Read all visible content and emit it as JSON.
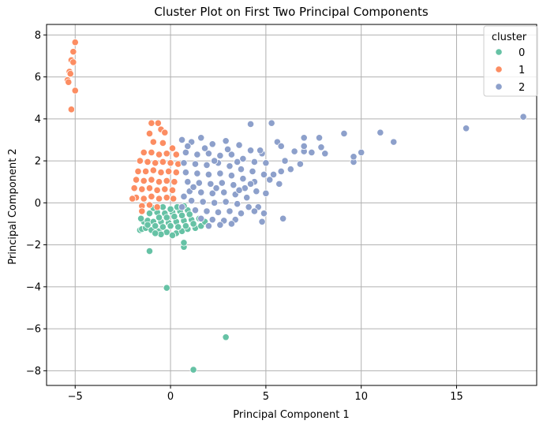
{
  "chart_data": {
    "type": "scatter",
    "title": "Cluster Plot on First Two Principal Components",
    "xlabel": "Principal Component 1",
    "ylabel": "Principal Component 2",
    "xlim": [
      -6.5,
      19.2
    ],
    "ylim": [
      -8.7,
      8.5
    ],
    "xticks": [
      -5,
      0,
      5,
      10,
      15
    ],
    "yticks": [
      -8,
      -6,
      -4,
      -2,
      0,
      2,
      4,
      6,
      8
    ],
    "xtick_labels": [
      "−5",
      "0",
      "5",
      "10",
      "15"
    ],
    "ytick_labels": [
      "−8",
      "−6",
      "−4",
      "−2",
      "0",
      "2",
      "4",
      "6",
      "8"
    ],
    "grid": true,
    "legend": {
      "title": "cluster",
      "placement": "top-right",
      "entries": [
        "0",
        "1",
        "2"
      ]
    },
    "series": [
      {
        "name": "0",
        "color": "#66c2a5",
        "points": [
          [
            -1.1,
            -2.3
          ],
          [
            -0.2,
            -4.05
          ],
          [
            0.7,
            -2.1
          ],
          [
            0.7,
            -1.9
          ],
          [
            2.9,
            -6.4
          ],
          [
            1.2,
            -7.95
          ],
          [
            -1.6,
            -1.3
          ],
          [
            -1.5,
            -1.25
          ],
          [
            -1.3,
            -1.2
          ],
          [
            -1.0,
            -1.3
          ],
          [
            -0.6,
            -1.35
          ],
          [
            -0.2,
            -1.4
          ],
          [
            0.3,
            -1.45
          ],
          [
            0.6,
            -1.35
          ],
          [
            0.9,
            -1.25
          ],
          [
            1.3,
            -1.2
          ],
          [
            -1.4,
            -0.9
          ],
          [
            -1.2,
            -0.85
          ],
          [
            -0.9,
            -0.9
          ],
          [
            -0.5,
            -0.9
          ],
          [
            -0.1,
            -0.95
          ],
          [
            0.3,
            -0.9
          ],
          [
            0.7,
            -0.85
          ],
          [
            1.1,
            -0.8
          ],
          [
            1.5,
            -0.75
          ],
          [
            -1.1,
            -0.5
          ],
          [
            -0.7,
            -0.45
          ],
          [
            -0.3,
            -0.5
          ],
          [
            0.1,
            -0.45
          ],
          [
            0.5,
            -0.4
          ],
          [
            0.9,
            -0.35
          ],
          [
            -1.2,
            -1.05
          ],
          [
            -0.8,
            -1.1
          ],
          [
            -0.4,
            -1.15
          ],
          [
            0.0,
            -1.1
          ],
          [
            0.4,
            -1.15
          ],
          [
            0.8,
            -1.1
          ],
          [
            1.2,
            -1.0
          ],
          [
            -0.6,
            -0.7
          ],
          [
            -0.2,
            -0.7
          ],
          [
            0.2,
            -0.65
          ],
          [
            0.6,
            -0.6
          ],
          [
            1.0,
            -0.55
          ],
          [
            -0.9,
            -0.25
          ],
          [
            -0.4,
            -0.2
          ],
          [
            0.0,
            -0.3
          ],
          [
            0.35,
            -0.2
          ],
          [
            0.7,
            -0.15
          ],
          [
            1.6,
            -1.1
          ],
          [
            -0.5,
            -1.5
          ],
          [
            0.1,
            -1.55
          ],
          [
            -1.55,
            -0.75
          ],
          [
            1.8,
            -0.9
          ],
          [
            -0.8,
            -1.45
          ]
        ]
      },
      {
        "name": "1",
        "color": "#fc8d62",
        "points": [
          [
            -5.0,
            7.65
          ],
          [
            -5.1,
            7.2
          ],
          [
            -5.2,
            6.8
          ],
          [
            -5.1,
            6.7
          ],
          [
            -5.3,
            6.25
          ],
          [
            -5.25,
            6.15
          ],
          [
            -5.4,
            5.85
          ],
          [
            -5.35,
            5.75
          ],
          [
            -5.0,
            5.35
          ],
          [
            -5.2,
            4.45
          ],
          [
            -1.0,
            3.8
          ],
          [
            -0.65,
            3.8
          ],
          [
            -1.1,
            3.3
          ],
          [
            -0.5,
            3.5
          ],
          [
            -0.3,
            3.35
          ],
          [
            -0.9,
            2.9
          ],
          [
            -0.4,
            2.85
          ],
          [
            0.1,
            2.6
          ],
          [
            -1.4,
            2.4
          ],
          [
            -1.0,
            2.4
          ],
          [
            -0.6,
            2.3
          ],
          [
            -0.2,
            2.35
          ],
          [
            0.3,
            2.3
          ],
          [
            -1.6,
            2.0
          ],
          [
            -1.2,
            1.95
          ],
          [
            -0.8,
            1.9
          ],
          [
            -0.4,
            1.95
          ],
          [
            0.0,
            1.9
          ],
          [
            0.4,
            1.85
          ],
          [
            -1.7,
            1.5
          ],
          [
            -1.3,
            1.5
          ],
          [
            -0.9,
            1.55
          ],
          [
            -0.5,
            1.45
          ],
          [
            -0.1,
            1.5
          ],
          [
            0.3,
            1.45
          ],
          [
            -1.8,
            1.1
          ],
          [
            -1.4,
            1.05
          ],
          [
            -1.0,
            1.1
          ],
          [
            -0.6,
            1.0
          ],
          [
            -0.2,
            1.05
          ],
          [
            0.2,
            1.0
          ],
          [
            -1.9,
            0.7
          ],
          [
            -1.5,
            0.65
          ],
          [
            -1.1,
            0.7
          ],
          [
            -0.7,
            0.6
          ],
          [
            -0.3,
            0.65
          ],
          [
            0.1,
            0.6
          ],
          [
            -1.8,
            0.25
          ],
          [
            -1.4,
            0.2
          ],
          [
            -1.0,
            0.3
          ],
          [
            -0.6,
            0.2
          ],
          [
            -0.2,
            0.25
          ],
          [
            0.15,
            0.2
          ],
          [
            -1.5,
            -0.15
          ],
          [
            -1.1,
            -0.1
          ],
          [
            -0.7,
            -0.2
          ],
          [
            -1.5,
            -0.4
          ],
          [
            -2.0,
            0.2
          ]
        ]
      },
      {
        "name": "2",
        "color": "#8da0cb",
        "points": [
          [
            18.5,
            4.1
          ],
          [
            15.5,
            3.55
          ],
          [
            11.7,
            2.9
          ],
          [
            11.0,
            3.35
          ],
          [
            10.0,
            2.4
          ],
          [
            9.6,
            1.95
          ],
          [
            9.6,
            2.2
          ],
          [
            9.1,
            3.3
          ],
          [
            8.1,
            2.35
          ],
          [
            7.9,
            2.65
          ],
          [
            7.8,
            3.1
          ],
          [
            7.4,
            2.4
          ],
          [
            7.0,
            2.45
          ],
          [
            7.0,
            2.7
          ],
          [
            7.0,
            3.1
          ],
          [
            5.3,
            3.8
          ],
          [
            4.2,
            3.75
          ],
          [
            5.6,
            2.9
          ],
          [
            5.8,
            2.7
          ],
          [
            6.5,
            2.45
          ],
          [
            6.8,
            1.85
          ],
          [
            6.3,
            1.6
          ],
          [
            5.9,
            -0.75
          ],
          [
            4.9,
            -0.5
          ],
          [
            4.8,
            -0.9
          ],
          [
            4.6,
            -0.2
          ],
          [
            5.7,
            0.9
          ],
          [
            5.8,
            1.5
          ],
          [
            6.0,
            2.0
          ],
          [
            0.6,
            3.0
          ],
          [
            1.1,
            2.9
          ],
          [
            1.6,
            3.1
          ],
          [
            2.2,
            2.8
          ],
          [
            2.9,
            2.95
          ],
          [
            3.6,
            2.75
          ],
          [
            4.2,
            2.5
          ],
          [
            4.8,
            2.35
          ],
          [
            0.8,
            2.4
          ],
          [
            1.4,
            2.3
          ],
          [
            2.0,
            2.35
          ],
          [
            2.6,
            2.25
          ],
          [
            3.2,
            2.3
          ],
          [
            3.8,
            2.1
          ],
          [
            4.4,
            1.95
          ],
          [
            5.0,
            1.9
          ],
          [
            0.7,
            1.9
          ],
          [
            1.3,
            1.85
          ],
          [
            1.9,
            1.8
          ],
          [
            2.5,
            1.9
          ],
          [
            3.1,
            1.75
          ],
          [
            3.7,
            1.6
          ],
          [
            4.3,
            1.5
          ],
          [
            4.9,
            1.35
          ],
          [
            0.8,
            1.45
          ],
          [
            1.4,
            1.4
          ],
          [
            2.0,
            1.35
          ],
          [
            2.6,
            1.4
          ],
          [
            3.2,
            1.3
          ],
          [
            3.8,
            1.15
          ],
          [
            4.4,
            1.0
          ],
          [
            5.2,
            1.1
          ],
          [
            0.9,
            1.0
          ],
          [
            1.5,
            0.95
          ],
          [
            2.1,
            0.9
          ],
          [
            2.7,
            0.95
          ],
          [
            3.3,
            0.85
          ],
          [
            3.9,
            0.7
          ],
          [
            4.5,
            0.55
          ],
          [
            1.0,
            0.55
          ],
          [
            1.6,
            0.5
          ],
          [
            2.2,
            0.45
          ],
          [
            2.8,
            0.5
          ],
          [
            3.4,
            0.4
          ],
          [
            4.0,
            0.25
          ],
          [
            1.1,
            0.1
          ],
          [
            1.7,
            0.05
          ],
          [
            2.3,
            0.0
          ],
          [
            2.9,
            0.05
          ],
          [
            3.5,
            -0.05
          ],
          [
            4.1,
            -0.2
          ],
          [
            1.3,
            -0.35
          ],
          [
            1.9,
            -0.4
          ],
          [
            2.5,
            -0.45
          ],
          [
            3.1,
            -0.4
          ],
          [
            3.7,
            -0.5
          ],
          [
            1.6,
            -0.75
          ],
          [
            2.2,
            -0.8
          ],
          [
            2.8,
            -0.85
          ],
          [
            3.4,
            -0.8
          ],
          [
            2.0,
            -1.1
          ],
          [
            2.6,
            -1.05
          ],
          [
            3.2,
            -1.0
          ],
          [
            0.9,
            2.7
          ],
          [
            1.8,
            2.6
          ],
          [
            3.0,
            2.55
          ],
          [
            2.3,
            2.0
          ],
          [
            3.5,
            1.95
          ],
          [
            1.2,
            0.75
          ],
          [
            2.4,
            0.7
          ],
          [
            3.6,
            0.6
          ],
          [
            4.2,
            0.9
          ],
          [
            5.4,
            1.35
          ],
          [
            5.0,
            0.45
          ],
          [
            4.4,
            -0.4
          ],
          [
            0.7,
            0.3
          ],
          [
            0.6,
            -0.2
          ],
          [
            4.7,
            2.5
          ]
        ]
      }
    ]
  }
}
